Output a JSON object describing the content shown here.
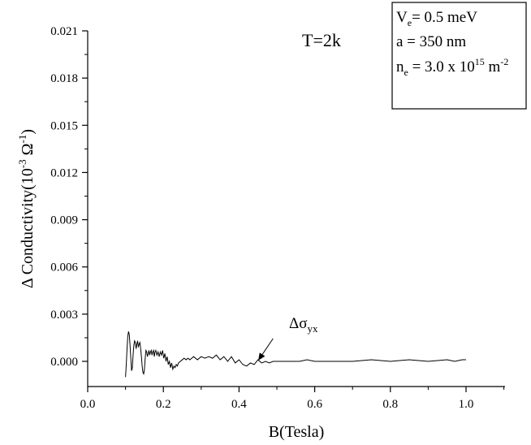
{
  "chart_data": {
    "type": "line",
    "xlabel": "B(Tesla)",
    "ylabel_main": "Δ Conductivity(10",
    "ylabel_exp1": "-3",
    "ylabel_mid": " Ω",
    "ylabel_exp2": "-1",
    "ylabel_end": ")",
    "xlim": [
      0.0,
      1.1
    ],
    "ylim": [
      -0.0012,
      0.021
    ],
    "x_ticks": [
      0.0,
      0.2,
      0.4,
      0.6,
      0.8,
      1.0
    ],
    "x_tick_labels": [
      "0.0",
      "0.2",
      "0.4",
      "0.6",
      "0.8",
      "1.0"
    ],
    "y_ticks": [
      0.0,
      0.003,
      0.006,
      0.009,
      0.012,
      0.015,
      0.018,
      0.021
    ],
    "y_tick_labels": [
      "0.000",
      "0.003",
      "0.006",
      "0.009",
      "0.012",
      "0.015",
      "0.018",
      "0.021"
    ],
    "grid": false,
    "annotation_temperature": "T=2k",
    "annotation_series": {
      "sym": "Δσ",
      "sub": "yx",
      "arrow_from": [
        0.49,
        0.00145
      ],
      "arrow_to": [
        0.452,
        0.0001
      ]
    },
    "legend_box": {
      "placement": "top-right",
      "line1_pre": "V",
      "line1_sub": "e",
      "line1_post": "= 0.5 meV",
      "line2": "a = 350 nm",
      "line3_pre": "n",
      "line3_sub": "e",
      "line3_mid": " = 3.0 x 10",
      "line3_sup1": "15",
      "line3_post": " m",
      "line3_sup2": "-2"
    },
    "series": [
      {
        "x": [
          0.1,
          0.102,
          0.104,
          0.106,
          0.108,
          0.11,
          0.112,
          0.114,
          0.116,
          0.118,
          0.12,
          0.122,
          0.124,
          0.126,
          0.128,
          0.13,
          0.132,
          0.134,
          0.136,
          0.138,
          0.14,
          0.142,
          0.144,
          0.146,
          0.148,
          0.15,
          0.152,
          0.154,
          0.156,
          0.158,
          0.16,
          0.162,
          0.164,
          0.166,
          0.168,
          0.17,
          0.172,
          0.174,
          0.176,
          0.178,
          0.18,
          0.183,
          0.186,
          0.189,
          0.192,
          0.195,
          0.198,
          0.201,
          0.204,
          0.207,
          0.21,
          0.213,
          0.216,
          0.219,
          0.222,
          0.225,
          0.228,
          0.231,
          0.234,
          0.237,
          0.24,
          0.245,
          0.25,
          0.255,
          0.26,
          0.265,
          0.27,
          0.275,
          0.28,
          0.29,
          0.3,
          0.31,
          0.32,
          0.33,
          0.34,
          0.35,
          0.36,
          0.37,
          0.38,
          0.39,
          0.4,
          0.41,
          0.42,
          0.43,
          0.44,
          0.45,
          0.46,
          0.47,
          0.48,
          0.49,
          0.5,
          0.52,
          0.54,
          0.56,
          0.58,
          0.6,
          0.65,
          0.7,
          0.75,
          0.8,
          0.85,
          0.9,
          0.95,
          0.97,
          0.99,
          1.0
        ],
        "y": [
          -0.001,
          -0.0002,
          0.0008,
          0.0016,
          0.0019,
          0.0017,
          0.001,
          0.0002,
          -0.0006,
          -0.0004,
          0.0004,
          0.001,
          0.0013,
          0.0012,
          0.0008,
          0.0011,
          0.0013,
          0.0009,
          0.0011,
          0.0012,
          0.0008,
          0.0003,
          -0.0003,
          -0.0007,
          -0.0008,
          -0.0005,
          0.0002,
          0.0007,
          0.0006,
          0.0003,
          0.0005,
          0.0007,
          0.0004,
          0.0006,
          0.0007,
          0.0004,
          0.0006,
          0.0007,
          0.0003,
          0.0006,
          0.0007,
          0.0004,
          0.0006,
          0.0003,
          0.0006,
          0.0004,
          0.0007,
          0.0002,
          0.0005,
          0.0,
          0.0003,
          -0.0002,
          0.0,
          -0.0004,
          -0.0001,
          -0.0005,
          -0.0003,
          -0.0004,
          -0.0002,
          -0.0003,
          -0.0001,
          0.0,
          0.0001,
          0.0002,
          0.0001,
          0.0002,
          0.0001,
          0.0002,
          0.0003,
          0.0001,
          0.0003,
          0.0002,
          0.0003,
          0.0002,
          0.0004,
          0.0001,
          0.0003,
          0.0,
          0.0003,
          -0.0001,
          0.0001,
          -0.0002,
          -0.0003,
          -0.0001,
          -0.0002,
          0.0001,
          -0.0001,
          0.0,
          -0.0001,
          0.0,
          0.0,
          0.0,
          0.0,
          0.0,
          0.0001,
          0.0,
          0.0,
          0.0,
          0.0001,
          0.0,
          0.0001,
          0.0,
          0.0001,
          0.0,
          0.0001,
          0.0001
        ]
      }
    ]
  },
  "colors": {
    "line": "#000000",
    "axis": "#000000",
    "background": "#ffffff"
  }
}
